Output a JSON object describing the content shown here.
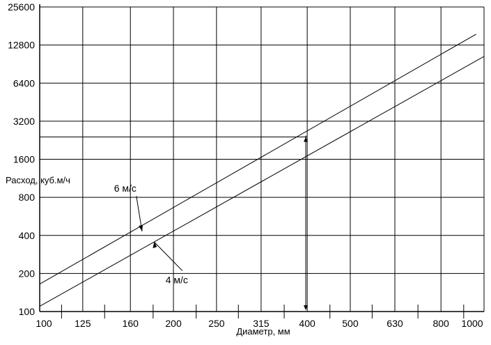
{
  "chart_data": {
    "type": "line",
    "xlabel": "Диаметр, мм",
    "ylabel": "Расход, куб.м/ч",
    "x_scale": "log",
    "y_scale": "log",
    "xlim": [
      100,
      1000
    ],
    "ylim": [
      100,
      25600
    ],
    "grid": true,
    "x_tick_labels": [
      "100",
      "125",
      "160",
      "200",
      "250",
      "315",
      "400",
      "500",
      "630",
      "800",
      "1000"
    ],
    "y_tick_labels": [
      "100",
      "200",
      "400",
      "800",
      "1600",
      "3200",
      "6400",
      "12800",
      "25600"
    ],
    "x_minor_ticks": [
      112,
      140,
      180,
      225,
      280,
      355,
      450,
      560,
      710,
      900
    ],
    "series": [
      {
        "name": "6 м/с",
        "x": [
          100,
          960
        ],
        "y": [
          165,
          15600
        ]
      },
      {
        "name": "4 м/с",
        "x": [
          100,
          1000
        ],
        "y": [
          110,
          10400
        ]
      }
    ],
    "annotations": [
      {
        "text": "6 м/с",
        "x": 147,
        "y": 800
      },
      {
        "text": "4 м/с",
        "x": 192,
        "y": 195
      }
    ],
    "example_reading": {
      "x": 397,
      "y": 2400
    }
  }
}
